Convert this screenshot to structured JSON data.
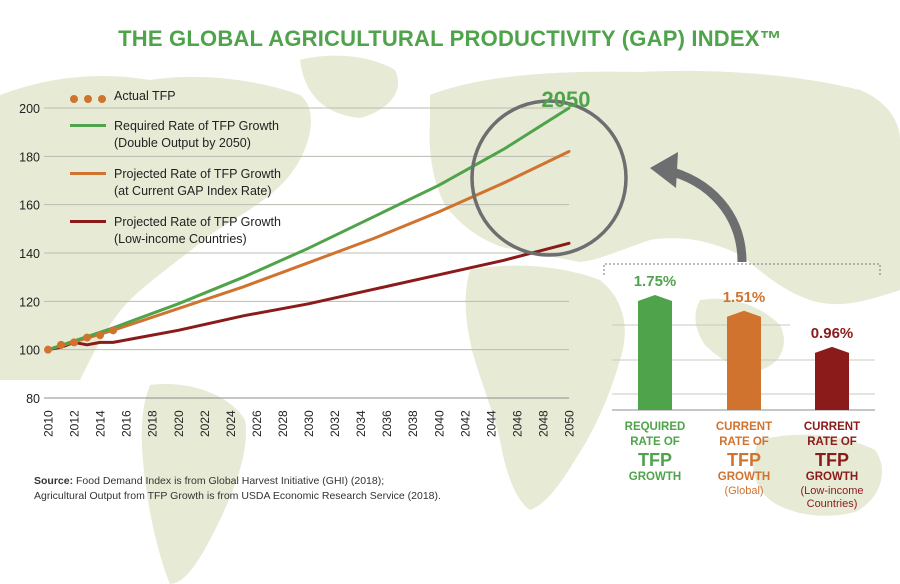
{
  "title": "THE GLOBAL AGRICULTURAL PRODUCTIVITY (GAP) INDEX™",
  "colors": {
    "green": "#4fa34a",
    "orange": "#d0732f",
    "darkred": "#8b1a1a",
    "map": "#e7ebd6",
    "grey_arrow": "#6d6e70"
  },
  "callout": "2050",
  "legend": {
    "actual": "Actual TFP",
    "required_l1": "Required Rate of TFP Growth",
    "required_l2": "(Double Output by 2050)",
    "projected_l1": "Projected Rate of TFP Growth",
    "projected_l2": "(at Current GAP Index Rate)",
    "lowincome_l1": "Projected Rate of TFP Growth",
    "lowincome_l2": "(Low-income Countries)"
  },
  "source": {
    "label": "Source:",
    "line1": " Food Demand Index is from Global Harvest Initiative (GHI) (2018);",
    "line2": "Agricultural Output from TFP Growth is from USDA Economic Research Service (2018)."
  },
  "chart_data": [
    {
      "type": "line",
      "title": "",
      "xlabel": "",
      "ylabel": "",
      "xlim": [
        2010,
        2050
      ],
      "ylim": [
        80,
        200
      ],
      "x_ticks": [
        2010,
        2012,
        2014,
        2016,
        2018,
        2020,
        2022,
        2024,
        2026,
        2028,
        2030,
        2032,
        2034,
        2036,
        2038,
        2040,
        2042,
        2044,
        2046,
        2048,
        2050
      ],
      "y_ticks": [
        80,
        100,
        120,
        140,
        160,
        180,
        200
      ],
      "grid": "horizontal",
      "legend_position": "top-left",
      "series": [
        {
          "name": "Actual TFP",
          "style": "dots",
          "color": "#d0732f",
          "x": [
            2010,
            2011,
            2012,
            2013,
            2014,
            2015
          ],
          "y": [
            100,
            102,
            103,
            105,
            106,
            108
          ]
        },
        {
          "name": "Required Rate of TFP Growth (Double Output by 2050)",
          "style": "line",
          "color": "#4fa34a",
          "x": [
            2010,
            2015,
            2020,
            2025,
            2030,
            2035,
            2040,
            2045,
            2050
          ],
          "y": [
            100,
            109,
            119,
            130,
            142,
            155,
            168,
            183,
            200
          ]
        },
        {
          "name": "Projected Rate of TFP Growth (at Current GAP Index Rate)",
          "style": "line",
          "color": "#d0732f",
          "x": [
            2010,
            2015,
            2020,
            2025,
            2030,
            2035,
            2040,
            2045,
            2050
          ],
          "y": [
            100,
            108,
            117,
            126,
            136,
            146,
            157,
            169,
            182
          ]
        },
        {
          "name": "Projected Rate of TFP Growth (Low-income Countries)",
          "style": "line",
          "color": "#8b1a1a",
          "x": [
            2010,
            2011,
            2012,
            2013,
            2014,
            2015,
            2020,
            2025,
            2030,
            2035,
            2040,
            2045,
            2050
          ],
          "y": [
            100,
            101,
            103,
            102,
            103,
            103,
            108,
            114,
            119,
            125,
            131,
            137,
            144
          ]
        }
      ]
    },
    {
      "type": "bar",
      "title": "",
      "categories": [
        "Required Rate of TFP Growth",
        "Current Rate of TFP Growth (Global)",
        "Current Rate of TFP Growth (Low-income Countries)"
      ],
      "values": [
        1.75,
        1.51,
        0.96
      ],
      "value_labels": [
        "1.75%",
        "1.51%",
        "0.96%"
      ],
      "colors": [
        "#4fa34a",
        "#d0732f",
        "#8b1a1a"
      ],
      "captions": [
        {
          "l1": "REQUIRED",
          "l2": "RATE OF",
          "l3": "TFP",
          "l4": "GROWTH",
          "l5": "",
          "l6": ""
        },
        {
          "l1": "CURRENT",
          "l2": "RATE OF",
          "l3": "TFP",
          "l4": "GROWTH",
          "l5": "(Global)",
          "l6": ""
        },
        {
          "l1": "CURRENT",
          "l2": "RATE OF",
          "l3": "TFP",
          "l4": "GROWTH",
          "l5": "(Low-income",
          "l6": "Countries)"
        }
      ]
    }
  ]
}
